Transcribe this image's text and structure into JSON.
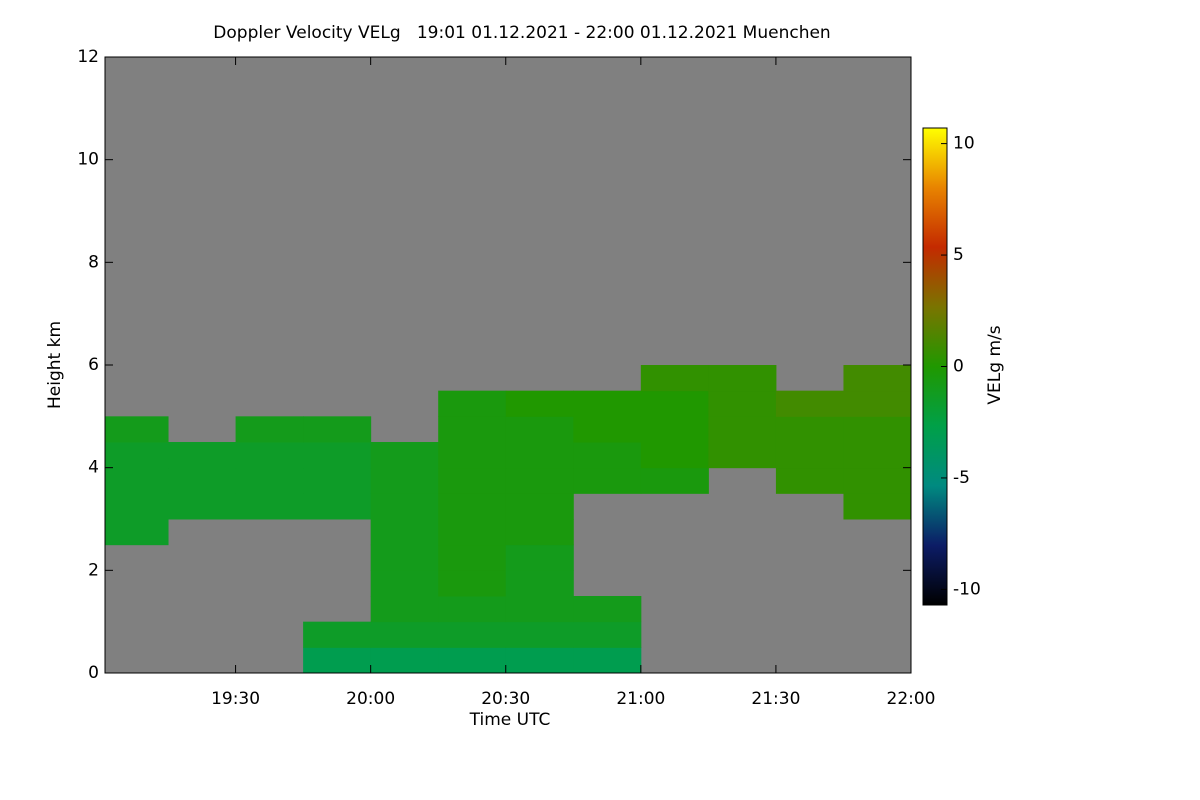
{
  "chart_data": {
    "type": "heatmap",
    "title": "Doppler Velocity VELg   19:01 01.12.2021 - 22:00 01.12.2021 Muenchen",
    "x_label": "Time UTC",
    "y_label": "Height km",
    "colorbar_label": "VELg m/s",
    "xlim": [
      19.0167,
      22
    ],
    "xticks": [
      {
        "value": 19.5,
        "label": "19:30"
      },
      {
        "value": 20,
        "label": "20:00"
      },
      {
        "value": 20.5,
        "label": "20:30"
      },
      {
        "value": 21,
        "label": "21:00"
      },
      {
        "value": 21.5,
        "label": "21:30"
      },
      {
        "value": 22,
        "label": "22:00"
      }
    ],
    "ylim": [
      0,
      12
    ],
    "yticks": [
      0,
      2,
      4,
      6,
      8,
      10,
      12
    ],
    "zlim": [
      -10.7,
      10.7
    ],
    "zticks": [
      -10,
      -5,
      0,
      5,
      10
    ],
    "colormap": [
      "#000000",
      "#0c1c66",
      "#008a80",
      "#00a048",
      "#209800",
      "#7a7400",
      "#c42a00",
      "#e88400",
      "#ffff00"
    ],
    "nodata_color": "#808080",
    "x_bins": [
      19.0167,
      19.25,
      19.5,
      19.75,
      20,
      20.25,
      20.5,
      20.75,
      21,
      21.25,
      21.5,
      21.75,
      22
    ],
    "y_bins": [
      0,
      0.5,
      1,
      1.5,
      2,
      2.5,
      3,
      3.5,
      4,
      4.5,
      5,
      5.5,
      6
    ],
    "z": [
      [
        null,
        null,
        null,
        -3,
        -3,
        -3,
        -3,
        -3,
        null,
        null,
        null,
        null
      ],
      [
        null,
        null,
        null,
        -1.5,
        -1.5,
        -1.5,
        -1.5,
        -1.5,
        null,
        null,
        null,
        null
      ],
      [
        null,
        null,
        null,
        null,
        -1,
        -1,
        -1,
        -1,
        null,
        null,
        null,
        null
      ],
      [
        null,
        null,
        null,
        null,
        -1,
        -0.5,
        -1,
        null,
        null,
        null,
        null,
        null
      ],
      [
        null,
        null,
        null,
        null,
        -1,
        -0.5,
        -1,
        null,
        null,
        null,
        null,
        null
      ],
      [
        -1.5,
        null,
        null,
        null,
        -1,
        -0.5,
        -0.5,
        null,
        null,
        null,
        null,
        null
      ],
      [
        -1.5,
        -1.5,
        -1.5,
        -1.5,
        -1,
        -0.5,
        -0.5,
        null,
        null,
        null,
        null,
        0.5
      ],
      [
        -1.5,
        -1.5,
        -1.5,
        -1.5,
        -1,
        -0.5,
        -0.5,
        -0.5,
        -0.5,
        null,
        0.5,
        0.5
      ],
      [
        -1.5,
        -1.5,
        -1.5,
        -1.5,
        -1,
        -0.5,
        -0.5,
        -0.5,
        0,
        0.5,
        0.5,
        0.5
      ],
      [
        -1,
        null,
        -1,
        -1,
        null,
        -0.5,
        -0.5,
        0,
        0,
        0.5,
        0.5,
        0.5
      ],
      [
        null,
        null,
        null,
        null,
        null,
        -0.5,
        0,
        0,
        0,
        0.5,
        1,
        1
      ],
      [
        null,
        null,
        null,
        null,
        null,
        null,
        null,
        null,
        0.5,
        0.5,
        null,
        1
      ]
    ]
  }
}
